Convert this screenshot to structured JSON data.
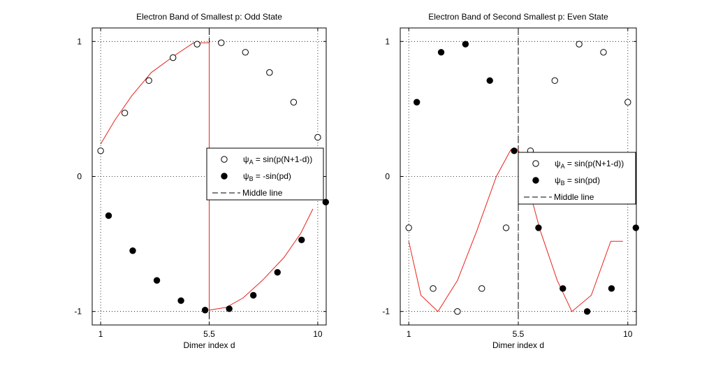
{
  "chart_data": [
    {
      "type": "scatter",
      "title": "Electron Band of Smallest p: Odd State",
      "xlabel": "Dimer index d",
      "ylabel": "",
      "xlim": [
        0.65,
        10.35
      ],
      "ylim": [
        -1.1,
        1.1
      ],
      "xticks": [
        1,
        5.5,
        10
      ],
      "xtick_labels": [
        "1",
        "5.5",
        "10"
      ],
      "yticks": [
        -1,
        0,
        1
      ],
      "ytick_labels": [
        "-1",
        "0",
        "1"
      ],
      "grid": true,
      "legend_placement": "right",
      "middle_line_x": 5.5,
      "series": [
        {
          "name": "ψA = sin(p(N+1-d))",
          "label_main": "ψ",
          "label_sub": "A",
          "label_rest": " = sin(p(N+1-d))",
          "marker": "open-circle",
          "x": [
            1,
            2,
            3,
            4,
            5,
            6,
            7,
            8,
            9,
            10
          ],
          "y": [
            0.19,
            0.47,
            0.71,
            0.88,
            0.98,
            0.99,
            0.92,
            0.77,
            0.55,
            0.29
          ]
        },
        {
          "name": "ψB = -sin(pd)",
          "label_main": "ψ",
          "label_sub": "B",
          "label_rest": " = -sin(pd)",
          "marker": "filled-circle",
          "x": [
            1.33,
            2.33,
            3.33,
            4.33,
            5.33,
            6.33,
            7.33,
            8.33,
            9.33,
            10.33
          ],
          "y": [
            -0.29,
            -0.55,
            -0.77,
            -0.92,
            -0.99,
            -0.98,
            -0.88,
            -0.71,
            -0.47,
            -0.19
          ]
        },
        {
          "name": "Middle line",
          "label_main": "Middle line",
          "label_sub": "",
          "label_rest": "",
          "marker": "dashed-line"
        }
      ],
      "envelope": {
        "color": "#e8231d",
        "x": [
          1,
          1.6,
          2.3,
          3.1,
          4.1,
          4.85,
          5.5,
          5.5,
          6.2,
          6.9,
          7.7,
          8.6,
          9.3,
          9.8
        ],
        "y": [
          0.24,
          0.42,
          0.6,
          0.77,
          0.9,
          0.99,
          0.99,
          -0.99,
          -0.97,
          -0.9,
          -0.77,
          -0.6,
          -0.42,
          -0.24
        ]
      }
    },
    {
      "type": "scatter",
      "title": "Electron Band of Second Smallest p: Even State",
      "xlabel": "Dimer index d",
      "ylabel": "",
      "xlim": [
        0.65,
        10.35
      ],
      "ylim": [
        -1.1,
        1.1
      ],
      "xticks": [
        1,
        5.5,
        10
      ],
      "xtick_labels": [
        "1",
        "5.5",
        "10"
      ],
      "yticks": [
        -1,
        0,
        1
      ],
      "ytick_labels": [
        "-1",
        "0",
        "1"
      ],
      "grid": true,
      "legend_placement": "right",
      "middle_line_x": 5.5,
      "series": [
        {
          "name": "ψA = sin(p(N+1-d))",
          "label_main": "ψ",
          "label_sub": "A",
          "label_rest": " = sin(p(N+1-d))",
          "marker": "open-circle",
          "x": [
            1,
            2,
            3,
            4,
            5,
            6,
            7,
            8,
            9,
            10
          ],
          "y": [
            -0.38,
            -0.83,
            -1.0,
            -0.83,
            -0.38,
            0.19,
            0.71,
            0.98,
            0.92,
            0.55
          ]
        },
        {
          "name": "ψB = sin(pd)",
          "label_main": "ψ",
          "label_sub": "B",
          "label_rest": " = sin(pd)",
          "marker": "filled-circle",
          "x": [
            1.33,
            2.33,
            3.33,
            4.33,
            5.33,
            6.33,
            7.33,
            8.33,
            9.33,
            10.33
          ],
          "y": [
            0.55,
            0.92,
            0.98,
            0.71,
            0.19,
            -0.38,
            -0.83,
            -1.0,
            -0.83,
            -0.38
          ]
        },
        {
          "name": "Middle line",
          "label_main": "Middle line",
          "label_sub": "",
          "label_rest": "",
          "marker": "dashed-line"
        }
      ],
      "envelope": {
        "color": "#e8231d",
        "x": [
          1,
          1.5,
          2.2,
          3.0,
          3.8,
          4.6,
          5.2,
          5.5,
          5.8,
          6.4,
          7.1,
          7.7,
          8.5,
          9.3,
          9.8
        ],
        "y": [
          -0.48,
          -0.88,
          -1.0,
          -0.77,
          -0.4,
          0.0,
          0.2,
          0.2,
          0.0,
          -0.4,
          -0.77,
          -1.0,
          -0.88,
          -0.48,
          -0.48
        ]
      }
    }
  ]
}
